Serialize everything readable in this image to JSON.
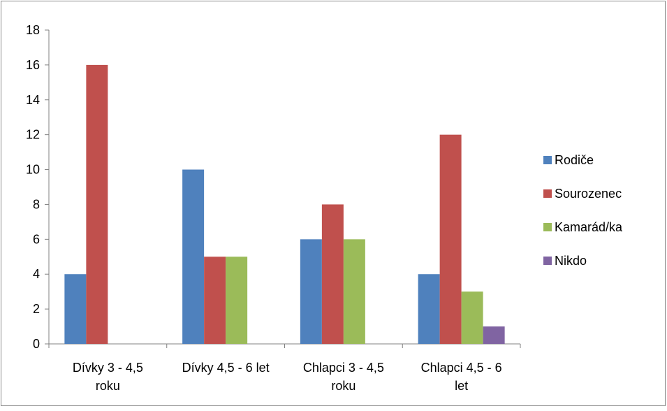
{
  "chart_data": {
    "type": "bar",
    "categories": [
      [
        "Dívky 3 - 4,5",
        "roku"
      ],
      [
        "Dívky 4,5 - 6 let"
      ],
      [
        "Chlapci 3 - 4,5",
        "roku"
      ],
      [
        "Chlapci 4,5 - 6",
        "let"
      ]
    ],
    "series": [
      {
        "name": "Rodiče",
        "color": "#4F81BD",
        "values": [
          4,
          10,
          6,
          4
        ]
      },
      {
        "name": "Sourozenec",
        "color": "#C0504D",
        "values": [
          16,
          5,
          8,
          12
        ]
      },
      {
        "name": "Kamarád/ka",
        "color": "#9BBB59",
        "values": [
          0,
          5,
          6,
          3
        ]
      },
      {
        "name": "Nikdo",
        "color": "#8064A2",
        "values": [
          0,
          0,
          0,
          1
        ]
      }
    ],
    "ylim": [
      0,
      18
    ],
    "yticks": [
      0,
      2,
      4,
      6,
      8,
      10,
      12,
      14,
      16,
      18
    ],
    "grid": false,
    "legend_position": "right"
  }
}
